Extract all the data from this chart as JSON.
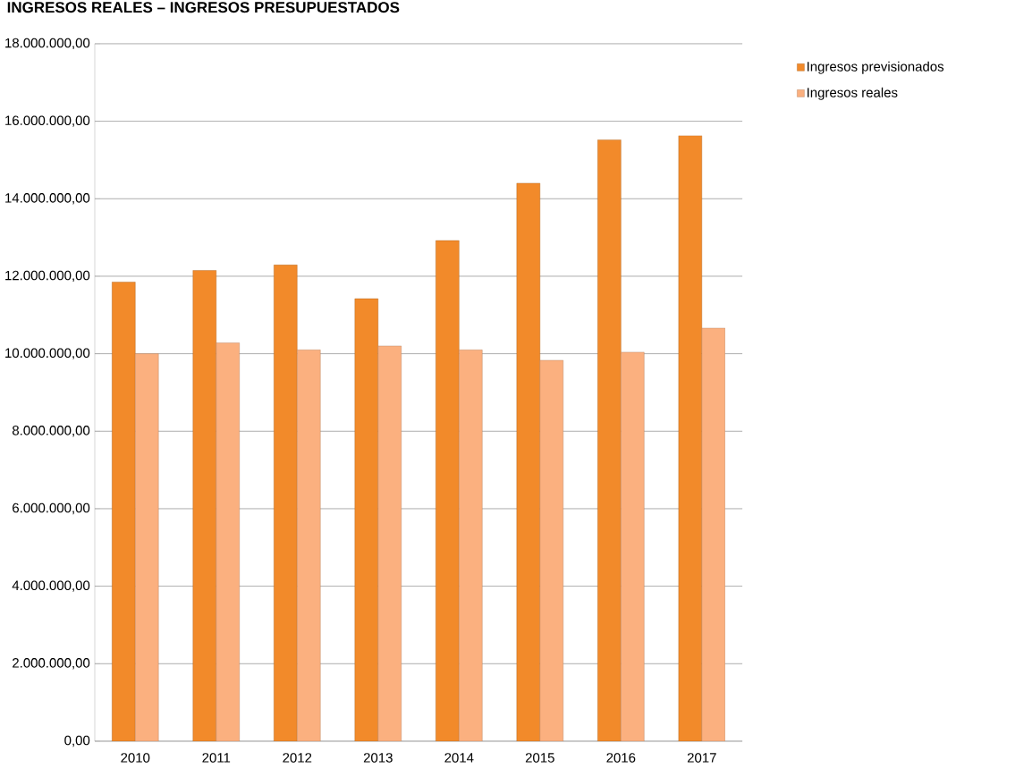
{
  "chart_data": {
    "type": "bar",
    "title": "INGRESOS REALES – INGRESOS PRESUPUESTADOS",
    "categories": [
      "2010",
      "2011",
      "2012",
      "2013",
      "2014",
      "2015",
      "2016",
      "2017"
    ],
    "series": [
      {
        "name": "Ingresos previsionados",
        "color": "#f28a2a",
        "values": [
          11850000,
          12150000,
          12290000,
          11420000,
          12920000,
          14400000,
          15520000,
          15630000
        ]
      },
      {
        "name": "Ingresos reales",
        "color": "#fbb07f",
        "values": [
          10000000,
          10280000,
          10100000,
          10200000,
          10100000,
          9830000,
          10040000,
          10660000
        ]
      }
    ],
    "ylim": [
      0,
      18000000
    ],
    "yticks": [
      {
        "value": 0,
        "label": "0,00"
      },
      {
        "value": 2000000,
        "label": "2.000.000,00"
      },
      {
        "value": 4000000,
        "label": "4.000.000,00"
      },
      {
        "value": 6000000,
        "label": "6.000.000,00"
      },
      {
        "value": 8000000,
        "label": "8.000.000,00"
      },
      {
        "value": 10000000,
        "label": "10.000.000,00"
      },
      {
        "value": 12000000,
        "label": "12.000.000,00"
      },
      {
        "value": 14000000,
        "label": "14.000.000,00"
      },
      {
        "value": 16000000,
        "label": "16.000.000,00"
      },
      {
        "value": 18000000,
        "label": "18.000.000,00"
      }
    ],
    "grid": "y",
    "legend": "top right"
  }
}
